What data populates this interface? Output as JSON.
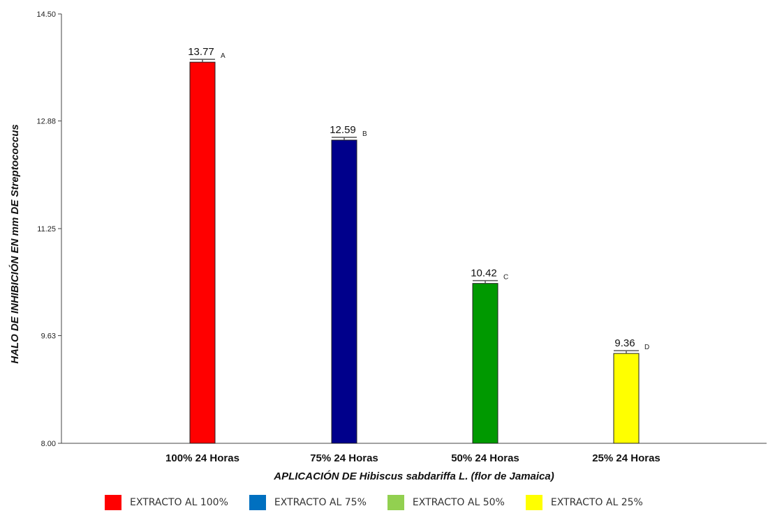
{
  "chart_data": {
    "type": "bar",
    "ylabel": "HALO DE INHIBICIÓN EN mm DE Streptococcus",
    "xlabel": "APLICACIÓN DE Hibiscus sabdariffa L. (flor de Jamaica)",
    "ylim": [
      8.0,
      14.5
    ],
    "yticks": [
      "8.00",
      "9.63",
      "11.25",
      "12.88",
      "14.50"
    ],
    "categories": [
      "100% 24 Horas",
      "75% 24 Horas",
      "50% 24 Horas",
      "25% 24 Horas"
    ],
    "values": [
      13.77,
      12.59,
      10.42,
      9.36
    ],
    "value_labels": [
      "13.77",
      "12.59",
      "10.42",
      "9.36"
    ],
    "group_letters": [
      "A",
      "B",
      "C",
      "D"
    ],
    "bar_colors": [
      "#ff0000",
      "#00008b",
      "#009900",
      "#ffff00"
    ],
    "error_bars": true,
    "grid": false,
    "legend": {
      "placement": "bottom",
      "items": [
        {
          "label": "EXTRACTO AL 100%",
          "color": "#ff0000"
        },
        {
          "label": "EXTRACTO AL 75%",
          "color": "#0070c0"
        },
        {
          "label": "EXTRACTO AL 50%",
          "color": "#92d050"
        },
        {
          "label": "EXTRACTO AL 25%",
          "color": "#ffff00"
        }
      ]
    }
  }
}
